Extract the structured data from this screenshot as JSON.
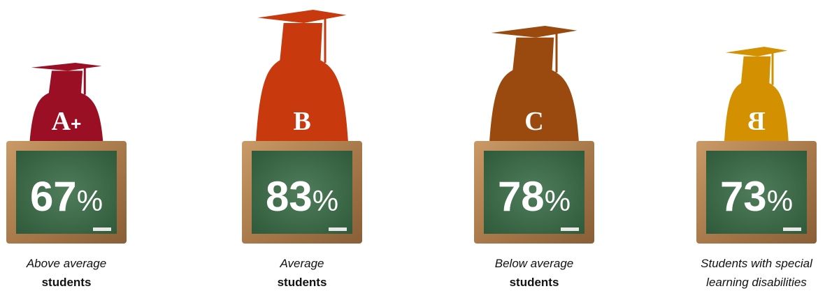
{
  "items": [
    {
      "grade": "A",
      "grade_suffix": "+",
      "percent": "67",
      "unit": "%",
      "caption": [
        "Above average",
        "students"
      ]
    },
    {
      "grade": "B",
      "percent": "83",
      "unit": "%",
      "caption": [
        "Average",
        "students"
      ]
    },
    {
      "grade": "C",
      "percent": "78",
      "unit": "%",
      "caption": [
        "Below average",
        "students"
      ]
    },
    {
      "grade": "B",
      "percent": "73",
      "unit": "%",
      "caption": [
        "Students with special",
        "learning disabilities"
      ]
    }
  ]
}
